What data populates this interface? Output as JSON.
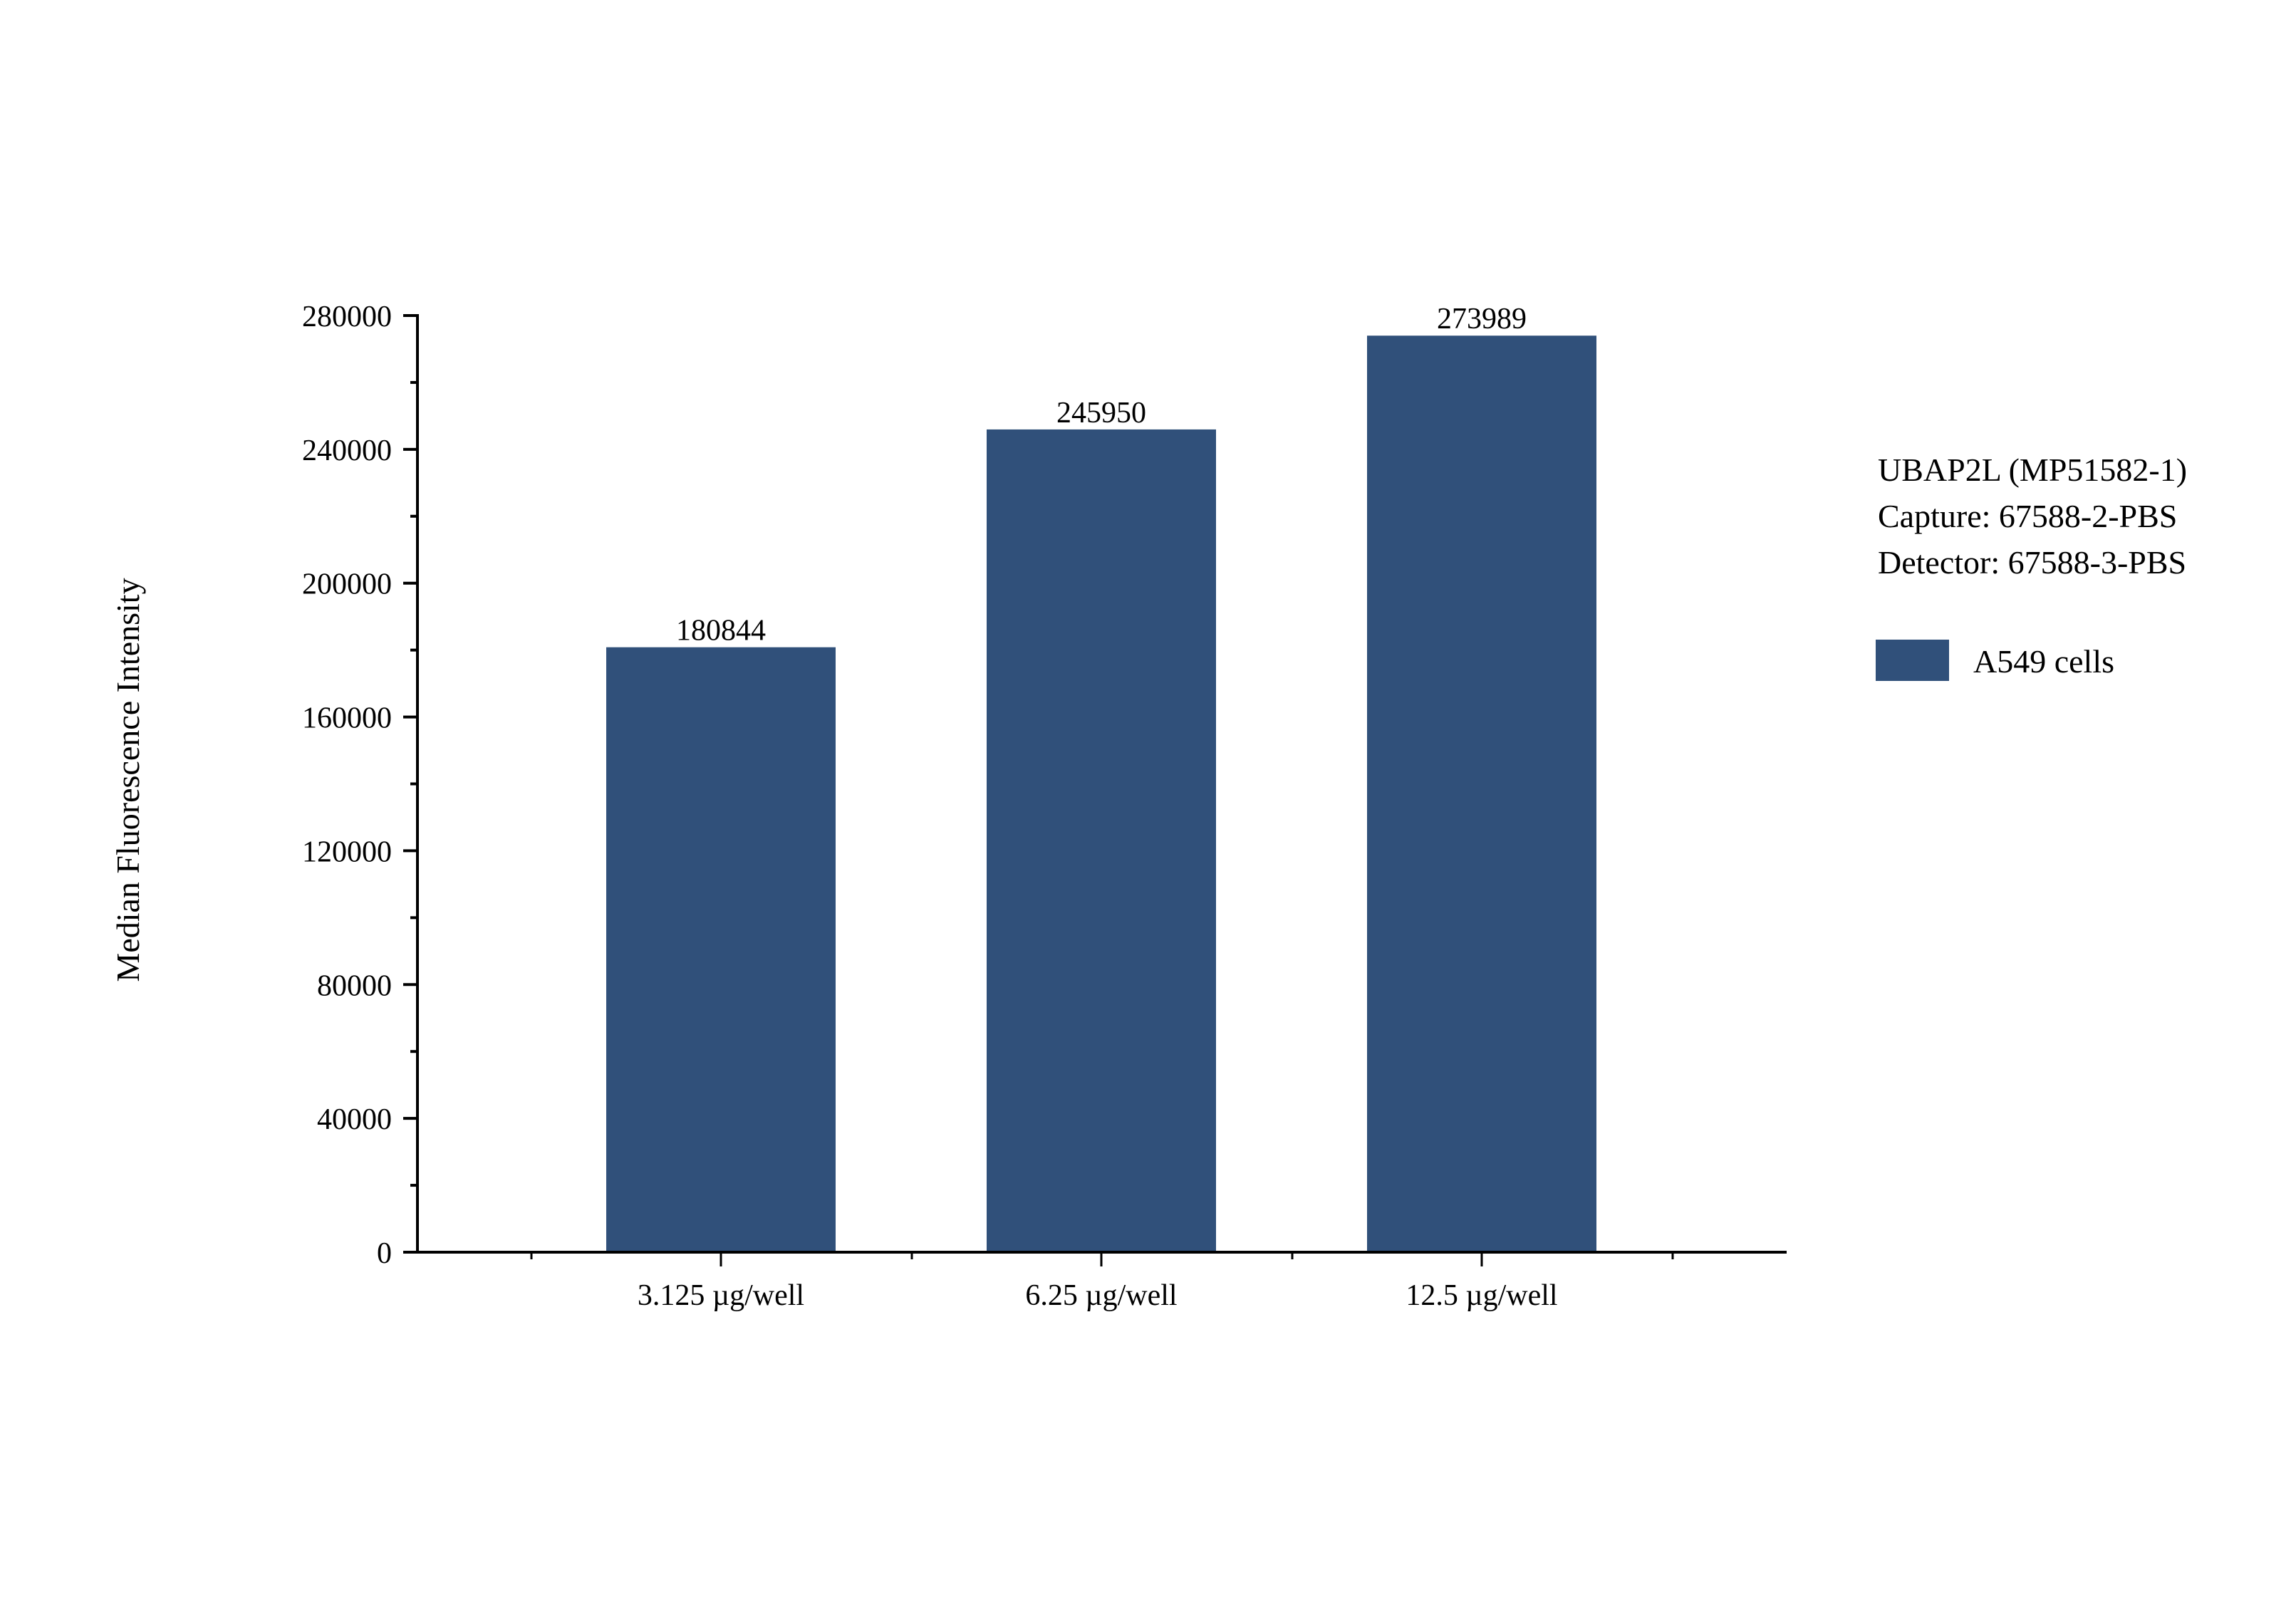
{
  "chart_data": {
    "type": "bar",
    "title": "",
    "xlabel": "",
    "ylabel": "Median Fluorescence Intensity",
    "categories": [
      "3.125 µg/well",
      "6.25 µg/well",
      "12.5 µg/well"
    ],
    "series": [
      {
        "name": "A549 cells",
        "color": "#30507A",
        "values": [
          180844,
          245950,
          273989
        ]
      }
    ],
    "data_labels": [
      "180844",
      "245950",
      "273989"
    ],
    "ylim": [
      0,
      280000
    ],
    "yticks": [
      0,
      40000,
      80000,
      120000,
      160000,
      200000,
      240000,
      280000
    ],
    "ytick_labels": [
      "0",
      "40000",
      "80000",
      "120000",
      "160000",
      "200000",
      "240000",
      "280000"
    ],
    "grid": false,
    "legend_position": "right",
    "annotation_lines": [
      "UBAP2L (MP51582-1)",
      "Capture: 67588-2-PBS",
      "Detector: 67588-3-PBS"
    ]
  },
  "legend": {
    "label": "A549 cells",
    "color": "#30507A"
  },
  "annotation": {
    "line1": "UBAP2L (MP51582-1)",
    "line2": "Capture: 67588-2-PBS",
    "line3": "Detector: 67588-3-PBS"
  },
  "axes": {
    "ylabel": "Median Fluorescence Intensity"
  }
}
